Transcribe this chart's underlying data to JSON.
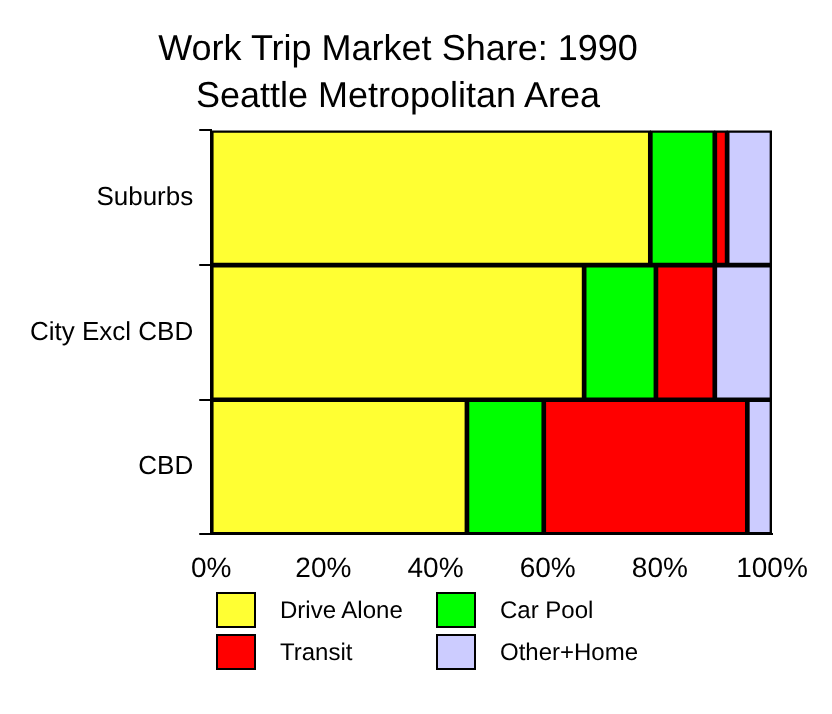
{
  "chart_data": {
    "type": "bar",
    "orientation": "horizontal",
    "stacked": true,
    "title": "Work Trip Market Share: 1990",
    "subtitle": "Seattle Metropolitan Area",
    "categories": [
      "Suburbs",
      "City Excl CBD",
      "CBD"
    ],
    "series": [
      {
        "name": "Drive Alone",
        "color": "#ffff33",
        "values": [
          78.3,
          66.5,
          45.6
        ]
      },
      {
        "name": "Car Pool",
        "color": "#00ff00",
        "values": [
          11.5,
          12.8,
          13.7
        ]
      },
      {
        "name": "Transit",
        "color": "#ff0000",
        "values": [
          2.2,
          10.5,
          36.3
        ]
      },
      {
        "name": "Other+Home",
        "color": "#ccccff",
        "values": [
          8,
          10.2,
          4.4
        ]
      }
    ],
    "xlim": [
      0,
      100
    ],
    "xticks": [
      {
        "value": 0,
        "label": "0%"
      },
      {
        "value": 20,
        "label": "20%"
      },
      {
        "value": 40,
        "label": "40%"
      },
      {
        "value": 60,
        "label": "60%"
      },
      {
        "value": 80,
        "label": "80%"
      },
      {
        "value": 100,
        "label": "100%"
      }
    ],
    "grid": false,
    "legend": "bottom"
  }
}
